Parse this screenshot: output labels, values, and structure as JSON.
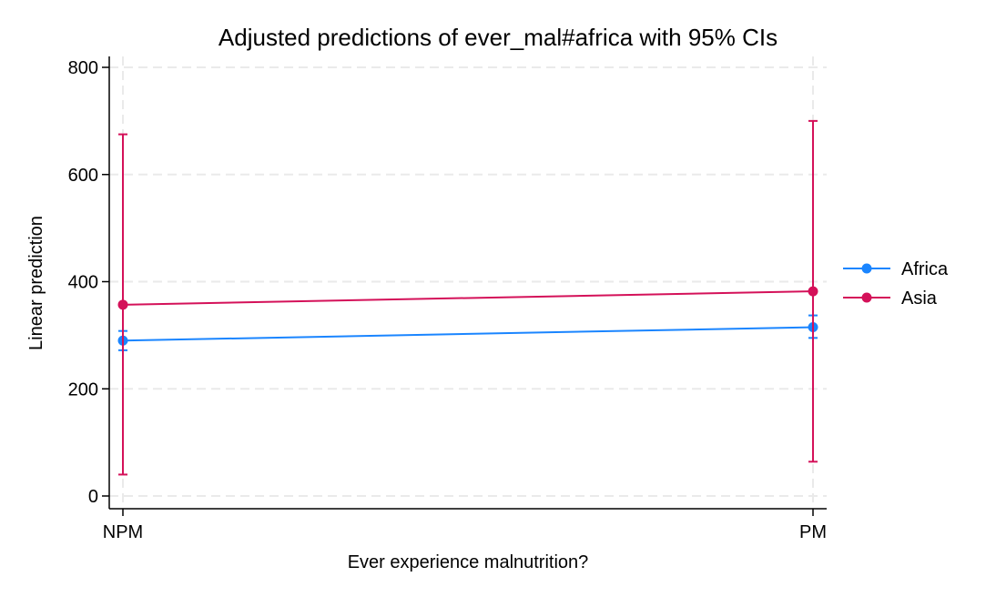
{
  "chart_data": {
    "type": "line",
    "title": "Adjusted predictions of ever_mal#africa with 95% CIs",
    "xlabel": "Ever experience malnutrition?",
    "ylabel": "Linear prediction",
    "categories": [
      "NPM",
      "PM"
    ],
    "ylim": [
      0,
      800
    ],
    "yticks": [
      0,
      200,
      400,
      600,
      800
    ],
    "grid": true,
    "legend_position": "right",
    "series": [
      {
        "name": "Africa",
        "color": "#1a85ff",
        "values": [
          290,
          315
        ],
        "ci_lower": [
          272,
          295
        ],
        "ci_upper": [
          308,
          337
        ]
      },
      {
        "name": "Asia",
        "color": "#d41159",
        "values": [
          357,
          382
        ],
        "ci_lower": [
          40,
          64
        ],
        "ci_upper": [
          675,
          700
        ]
      }
    ]
  }
}
